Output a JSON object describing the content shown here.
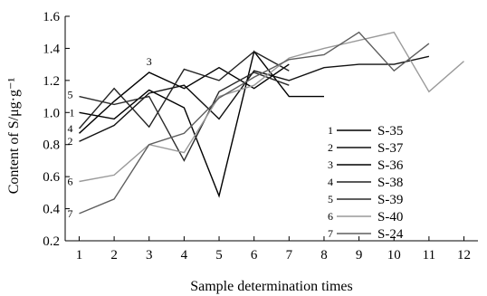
{
  "chart_data": {
    "type": "line",
    "xlabel": "Sample determination times",
    "ylabel": "Content of S/μg·g⁻¹",
    "xlim": [
      0.6,
      12.4
    ],
    "ylim": [
      0.2,
      1.6
    ],
    "x_ticks": [
      "1",
      "2",
      "3",
      "4",
      "5",
      "6",
      "7",
      "8",
      "9",
      "10",
      "11",
      "12"
    ],
    "y_ticks": [
      "0.2",
      "0.4",
      "0.6",
      "0.8",
      "1.0",
      "1.2",
      "1.4",
      "1.6"
    ],
    "grid": false,
    "legend_position": "center-right",
    "series": [
      {
        "name": "S-35",
        "tag": "1",
        "color": "#000000",
        "x": [
          1,
          2,
          3,
          4,
          5,
          6,
          7,
          8
        ],
        "y": [
          1.0,
          0.96,
          1.14,
          1.03,
          0.48,
          1.38,
          1.1,
          1.1
        ]
      },
      {
        "name": "S-37",
        "tag": "2",
        "color": "#111111",
        "x": [
          1,
          2,
          3,
          4,
          5,
          6,
          7,
          8,
          9,
          10,
          11
        ],
        "y": [
          0.82,
          0.92,
          1.12,
          1.17,
          0.96,
          1.26,
          1.2,
          1.28,
          1.3,
          1.3,
          1.35
        ]
      },
      {
        "name": "S-36",
        "tag": "3",
        "color": "#000000",
        "x": [
          1,
          2,
          3,
          4,
          5,
          6,
          7
        ],
        "y": [
          0.87,
          1.07,
          1.25,
          1.15,
          1.28,
          1.15,
          1.3
        ]
      },
      {
        "name": "S-38",
        "tag": "4",
        "color": "#222222",
        "x": [
          1,
          2,
          3,
          4,
          5,
          6,
          7
        ],
        "y": [
          0.9,
          1.15,
          0.91,
          1.27,
          1.2,
          1.38,
          1.26
        ]
      },
      {
        "name": "S-39",
        "tag": "5",
        "color": "#2a2a2a",
        "x": [
          1,
          2,
          3,
          4,
          5,
          6,
          7
        ],
        "y": [
          1.1,
          1.05,
          1.1,
          0.7,
          1.13,
          1.25,
          1.17
        ]
      },
      {
        "name": "S-40",
        "tag": "6",
        "color": "#9a9a9a",
        "x": [
          1,
          2,
          3,
          4,
          5,
          6,
          7,
          8,
          9,
          10,
          11,
          12
        ],
        "y": [
          0.57,
          0.61,
          0.8,
          0.75,
          1.1,
          1.17,
          1.34,
          1.4,
          1.45,
          1.5,
          1.13,
          1.32
        ]
      },
      {
        "name": "S-24",
        "tag": "7",
        "color": "#5e5e5e",
        "x": [
          1,
          2,
          3,
          4,
          5,
          6,
          7,
          8,
          9,
          10,
          11
        ],
        "y": [
          0.37,
          0.46,
          0.8,
          0.87,
          1.09,
          1.22,
          1.33,
          1.36,
          1.5,
          1.26,
          1.43
        ]
      }
    ]
  }
}
